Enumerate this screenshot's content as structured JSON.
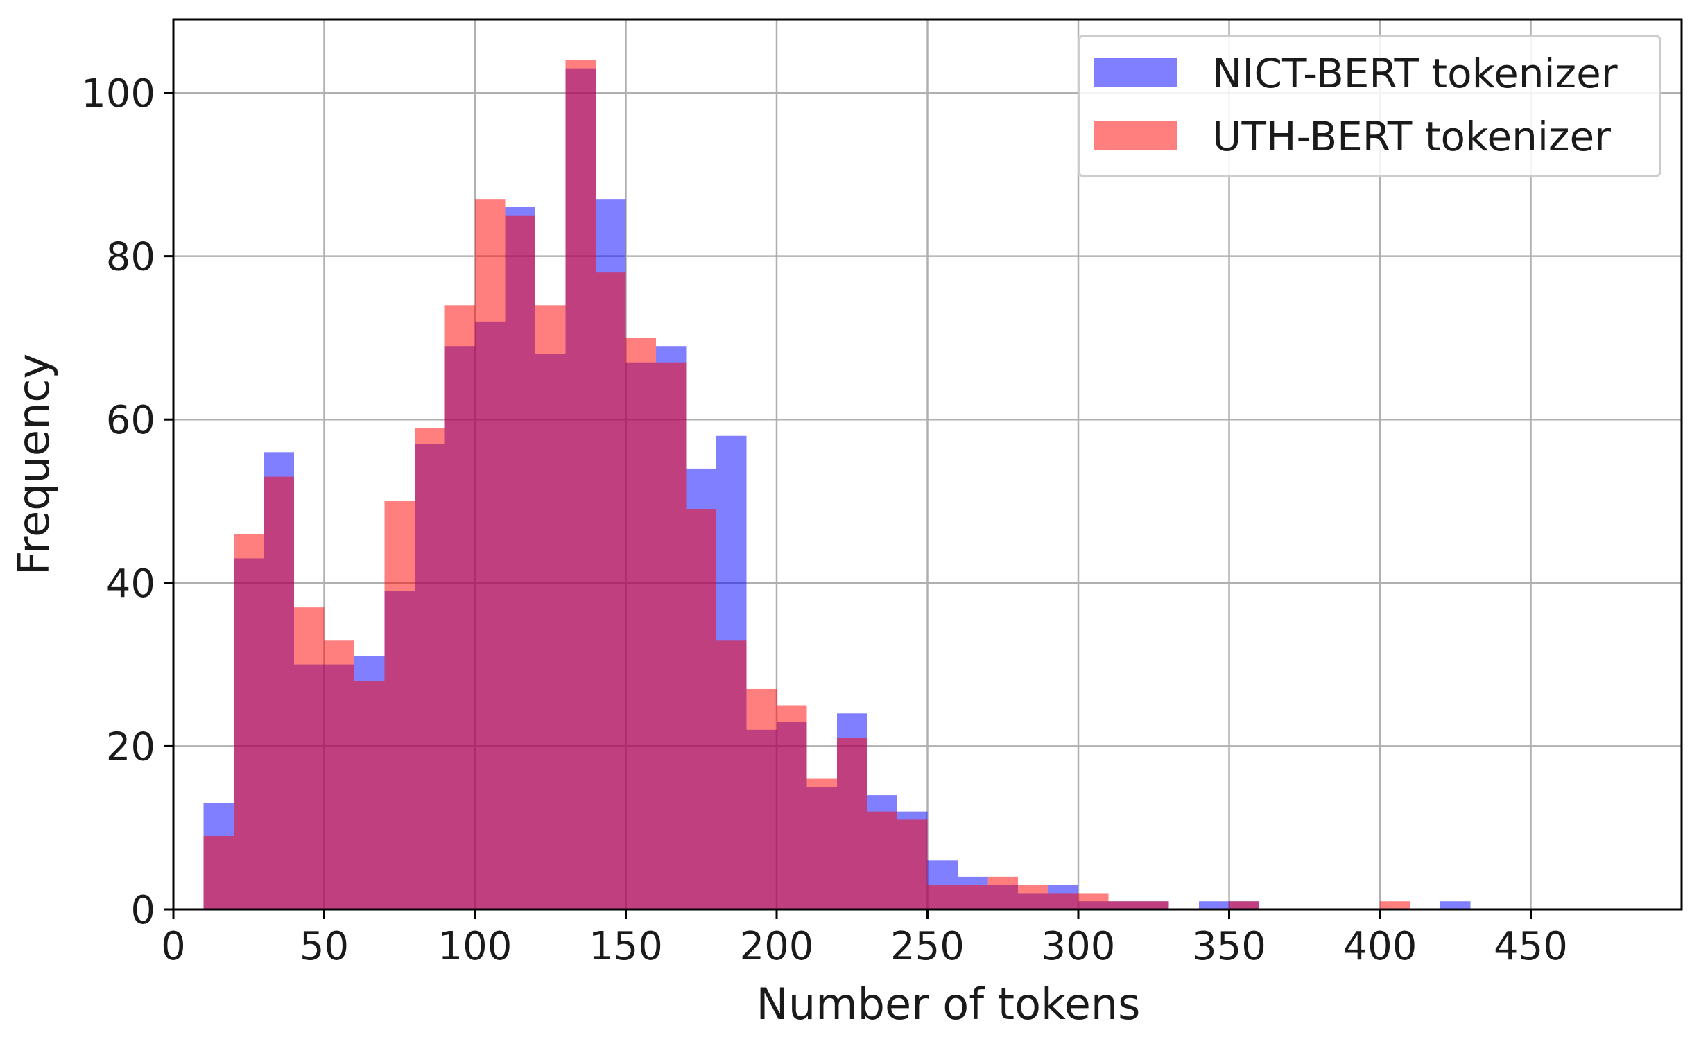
{
  "chart_data": {
    "type": "histogram",
    "xlabel": "Number of tokens",
    "ylabel": "Frequency",
    "xlim": [
      0,
      500
    ],
    "ylim": [
      0,
      109
    ],
    "bin_width": 10,
    "grid": true,
    "legend_position": "top-right",
    "x_ticks": [
      0,
      50,
      100,
      150,
      200,
      250,
      300,
      350,
      400,
      450
    ],
    "x_tick_labels": [
      "0",
      "50",
      "100",
      "150",
      "200",
      "250",
      "300",
      "350",
      "400",
      "450"
    ],
    "y_ticks": [
      0,
      20,
      40,
      60,
      80,
      100
    ],
    "y_tick_labels": [
      "0",
      "20",
      "40",
      "60",
      "80",
      "100"
    ],
    "bin_starts": [
      10,
      20,
      30,
      40,
      50,
      60,
      70,
      80,
      90,
      100,
      110,
      120,
      130,
      140,
      150,
      160,
      170,
      180,
      190,
      200,
      210,
      220,
      230,
      240,
      250,
      260,
      270,
      280,
      290,
      300,
      310,
      320,
      330,
      340,
      350,
      360,
      370,
      380,
      390,
      400,
      410,
      420
    ],
    "series": [
      {
        "name": "NICT-BERT tokenizer",
        "color": "#0000ff",
        "opacity": 0.5,
        "values": [
          13,
          43,
          56,
          30,
          30,
          31,
          39,
          57,
          69,
          72,
          86,
          68,
          103,
          87,
          67,
          69,
          54,
          58,
          22,
          23,
          15,
          24,
          14,
          12,
          6,
          4,
          3,
          2,
          3,
          1,
          1,
          1,
          0,
          1,
          1,
          0,
          0,
          0,
          0,
          0,
          0,
          1
        ]
      },
      {
        "name": "UTH-BERT tokenizer",
        "color": "#ff0000",
        "opacity": 0.5,
        "values": [
          9,
          46,
          53,
          37,
          33,
          28,
          50,
          59,
          74,
          87,
          85,
          74,
          104,
          78,
          70,
          67,
          49,
          33,
          27,
          25,
          16,
          21,
          12,
          11,
          3,
          3,
          4,
          3,
          2,
          2,
          1,
          1,
          0,
          0,
          1,
          0,
          0,
          0,
          0,
          1,
          0,
          0
        ]
      }
    ]
  }
}
